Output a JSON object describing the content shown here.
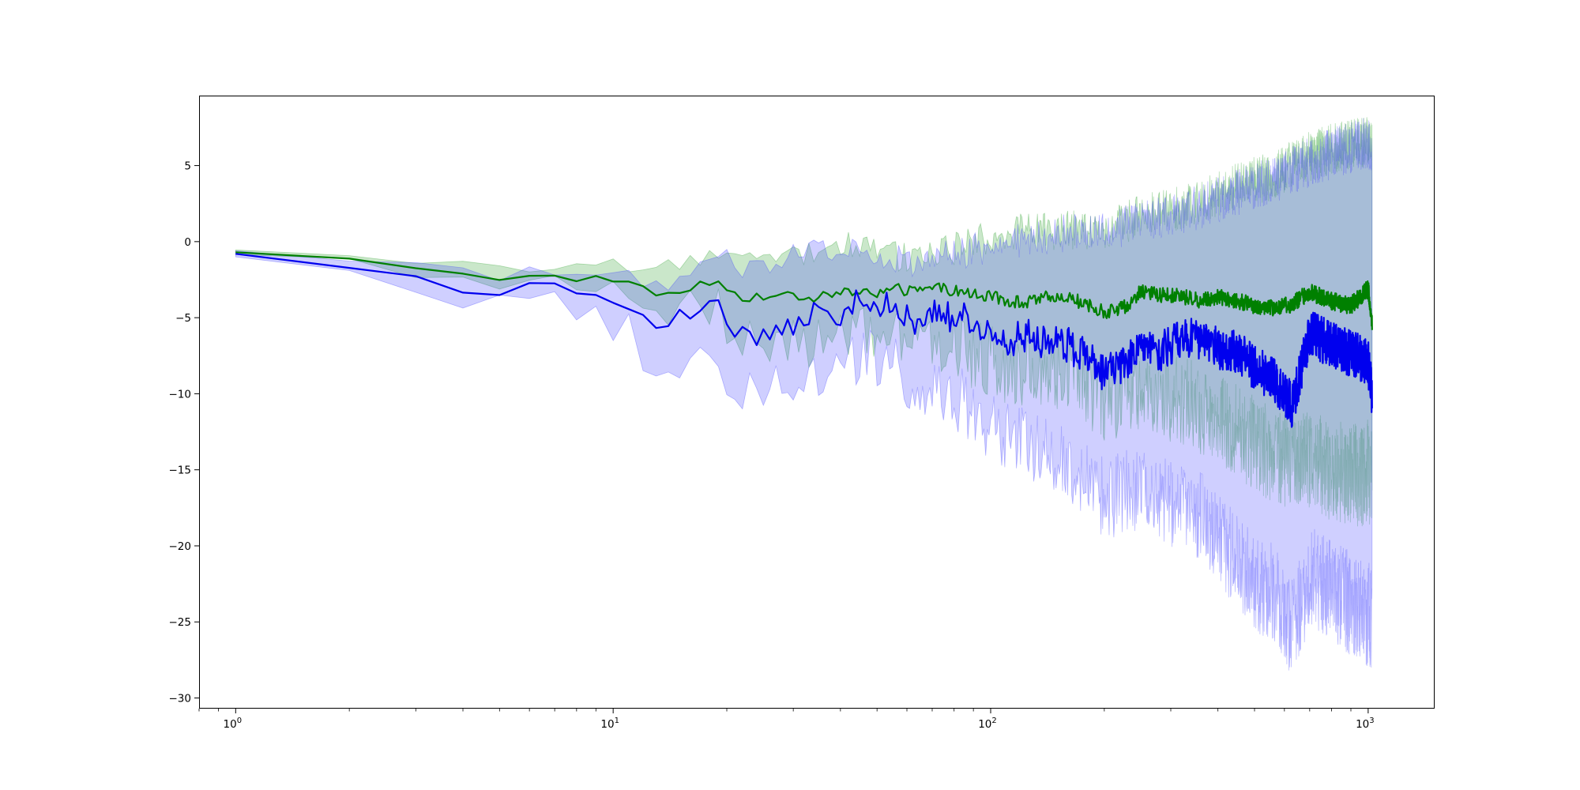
{
  "chart_data": {
    "type": "line",
    "title": "",
    "xlabel": "",
    "ylabel": "",
    "xscale": "log",
    "xlim": [
      0.8,
      1500
    ],
    "ylim": [
      -30.7,
      9.6
    ],
    "grid": false,
    "legend": "none",
    "x_ticks": [
      {
        "value": 1,
        "base": "10",
        "exp": "0"
      },
      {
        "value": 10,
        "base": "10",
        "exp": "1"
      },
      {
        "value": 100,
        "base": "10",
        "exp": "2"
      },
      {
        "value": 1000,
        "base": "10",
        "exp": "3"
      }
    ],
    "y_ticks": [
      {
        "value": 5,
        "label": "5"
      },
      {
        "value": 0,
        "label": "0"
      },
      {
        "value": -5,
        "label": "−5"
      },
      {
        "value": -10,
        "label": "−10"
      },
      {
        "value": -15,
        "label": "−15"
      },
      {
        "value": -20,
        "label": "−20"
      },
      {
        "value": -25,
        "label": "−25"
      },
      {
        "value": -30,
        "label": "−30"
      }
    ],
    "series": [
      {
        "color": "#008000",
        "band_color": "#2ca02c",
        "band_opacity": 0.25,
        "x": [
          1,
          2,
          3,
          4,
          5,
          6,
          7,
          8,
          9,
          10,
          11,
          12,
          13,
          14,
          15,
          16,
          17,
          18,
          19,
          20,
          22,
          25,
          28,
          30,
          33,
          36,
          40,
          45,
          50,
          56,
          63,
          70,
          80,
          90,
          100,
          112,
          125,
          140,
          160,
          180,
          200,
          224,
          250,
          280,
          320,
          360,
          400,
          450,
          500,
          560,
          630,
          700,
          800,
          900,
          1000,
          1024
        ],
        "y": [
          -0.7,
          -1.1,
          -1.7,
          -2.1,
          -2.4,
          -2.3,
          -2.35,
          -2.45,
          -2.4,
          -2.5,
          -2.6,
          -3.0,
          -3.6,
          -3.3,
          -3.2,
          -3.0,
          -2.8,
          -2.7,
          -2.5,
          -3.0,
          -3.7,
          -3.6,
          -3.7,
          -3.5,
          -3.7,
          -3.6,
          -3.4,
          -3.2,
          -3.4,
          -3.1,
          -3.3,
          -3.0,
          -3.2,
          -3.5,
          -3.6,
          -3.9,
          -4.0,
          -3.7,
          -3.6,
          -4.2,
          -4.6,
          -4.4,
          -3.3,
          -3.5,
          -3.6,
          -3.9,
          -3.6,
          -3.9,
          -4.2,
          -4.4,
          -4.1,
          -3.3,
          -3.9,
          -4.2,
          -3.1,
          -5.3
        ],
        "lower": [
          -0.85,
          -1.3,
          -2.0,
          -2.6,
          -3.0,
          -2.9,
          -3.0,
          -3.1,
          -3.2,
          -3.3,
          -3.6,
          -4.0,
          -4.6,
          -4.5,
          -4.4,
          -4.2,
          -4.1,
          -4.4,
          -4.5,
          -5.3,
          -6.0,
          -6.4,
          -6.5,
          -6.3,
          -6.6,
          -6.7,
          -6.3,
          -6.2,
          -6.7,
          -6.3,
          -6.6,
          -6.5,
          -7.0,
          -7.4,
          -7.8,
          -8.5,
          -8.7,
          -8.6,
          -8.7,
          -9.5,
          -10.6,
          -10.0,
          -9.5,
          -10.2,
          -10.4,
          -11.0,
          -11.4,
          -12.5,
          -13.2,
          -14.0,
          -14.5,
          -14.2,
          -15.0,
          -15.4,
          -15.2,
          -16.0
        ],
        "upper": [
          -0.55,
          -0.85,
          -1.3,
          -1.5,
          -1.8,
          -1.6,
          -1.65,
          -1.7,
          -1.6,
          -1.6,
          -1.5,
          -1.6,
          -1.9,
          -1.7,
          -1.6,
          -1.6,
          -1.5,
          -1.3,
          -1.0,
          -0.9,
          -1.0,
          -1.1,
          -0.9,
          -0.7,
          -0.6,
          -0.4,
          -0.3,
          -0.1,
          -0.6,
          -0.9,
          -1.1,
          -0.6,
          -0.4,
          -0.1,
          0.3,
          0.6,
          0.7,
          0.6,
          0.8,
          0.7,
          0.5,
          1.2,
          1.7,
          2.0,
          2.2,
          2.6,
          3.1,
          3.7,
          4.0,
          4.3,
          5.2,
          5.6,
          6.1,
          6.4,
          6.7,
          6.3
        ]
      },
      {
        "color": "#0000ee",
        "band_color": "#4040ff",
        "band_opacity": 0.25,
        "x": [
          1,
          2,
          3,
          4,
          5,
          6,
          7,
          8,
          9,
          10,
          11,
          12,
          13,
          14,
          15,
          16,
          17,
          18,
          19,
          20,
          22,
          25,
          28,
          30,
          33,
          36,
          40,
          45,
          50,
          56,
          63,
          70,
          80,
          90,
          100,
          112,
          125,
          140,
          160,
          180,
          200,
          224,
          250,
          280,
          320,
          360,
          400,
          450,
          500,
          560,
          630,
          700,
          800,
          900,
          1000,
          1024
        ],
        "y": [
          -0.8,
          -1.6,
          -2.1,
          -3.1,
          -3.2,
          -3.0,
          -3.05,
          -3.3,
          -3.1,
          -3.7,
          -3.9,
          -5.2,
          -5.3,
          -5.2,
          -5.0,
          -4.9,
          -4.3,
          -3.6,
          -3.5,
          -5.8,
          -6.1,
          -6.3,
          -5.9,
          -5.4,
          -5.1,
          -4.0,
          -4.8,
          -3.9,
          -4.3,
          -4.1,
          -5.6,
          -4.3,
          -5.1,
          -5.0,
          -6.2,
          -6.5,
          -6.2,
          -6.7,
          -6.8,
          -7.6,
          -8.8,
          -8.0,
          -7.2,
          -7.3,
          -6.3,
          -6.4,
          -7.0,
          -7.2,
          -8.3,
          -9.0,
          -10.8,
          -6.0,
          -6.8,
          -7.4,
          -7.9,
          -10.0
        ],
        "lower": [
          -1.0,
          -2.0,
          -2.8,
          -4.0,
          -4.3,
          -4.1,
          -4.2,
          -4.6,
          -4.8,
          -5.5,
          -5.9,
          -7.5,
          -8.1,
          -8.0,
          -7.8,
          -7.5,
          -7.2,
          -7.0,
          -8.0,
          -9.8,
          -10.2,
          -10.0,
          -9.7,
          -9.5,
          -9.4,
          -8.6,
          -8.4,
          -7.6,
          -7.8,
          -7.9,
          -9.4,
          -9.3,
          -10.2,
          -11.0,
          -12.2,
          -13.0,
          -13.2,
          -14.0,
          -14.6,
          -15.5,
          -17.0,
          -16.5,
          -16.2,
          -16.8,
          -17.5,
          -18.0,
          -19.5,
          -21.0,
          -22.5,
          -23.0,
          -25.5,
          -22.0,
          -23.0,
          -23.8,
          -24.5,
          -25.0
        ],
        "upper": [
          -0.6,
          -1.2,
          -1.4,
          -2.0,
          -2.3,
          -2.0,
          -2.0,
          -2.1,
          -1.9,
          -2.1,
          -2.0,
          -2.7,
          -2.9,
          -2.7,
          -2.4,
          -2.2,
          -1.9,
          -0.9,
          -0.8,
          -1.1,
          -1.6,
          -1.5,
          -1.3,
          -0.9,
          -0.8,
          -0.6,
          -0.4,
          -0.3,
          -0.8,
          -1.1,
          -1.4,
          -0.9,
          -0.8,
          -0.6,
          -0.3,
          -0.1,
          0.2,
          0.4,
          0.6,
          0.8,
          0.7,
          1.0,
          1.3,
          1.5,
          1.9,
          2.3,
          2.8,
          3.2,
          3.7,
          4.0,
          4.8,
          5.2,
          5.8,
          6.2,
          6.5,
          5.0
        ]
      }
    ]
  }
}
